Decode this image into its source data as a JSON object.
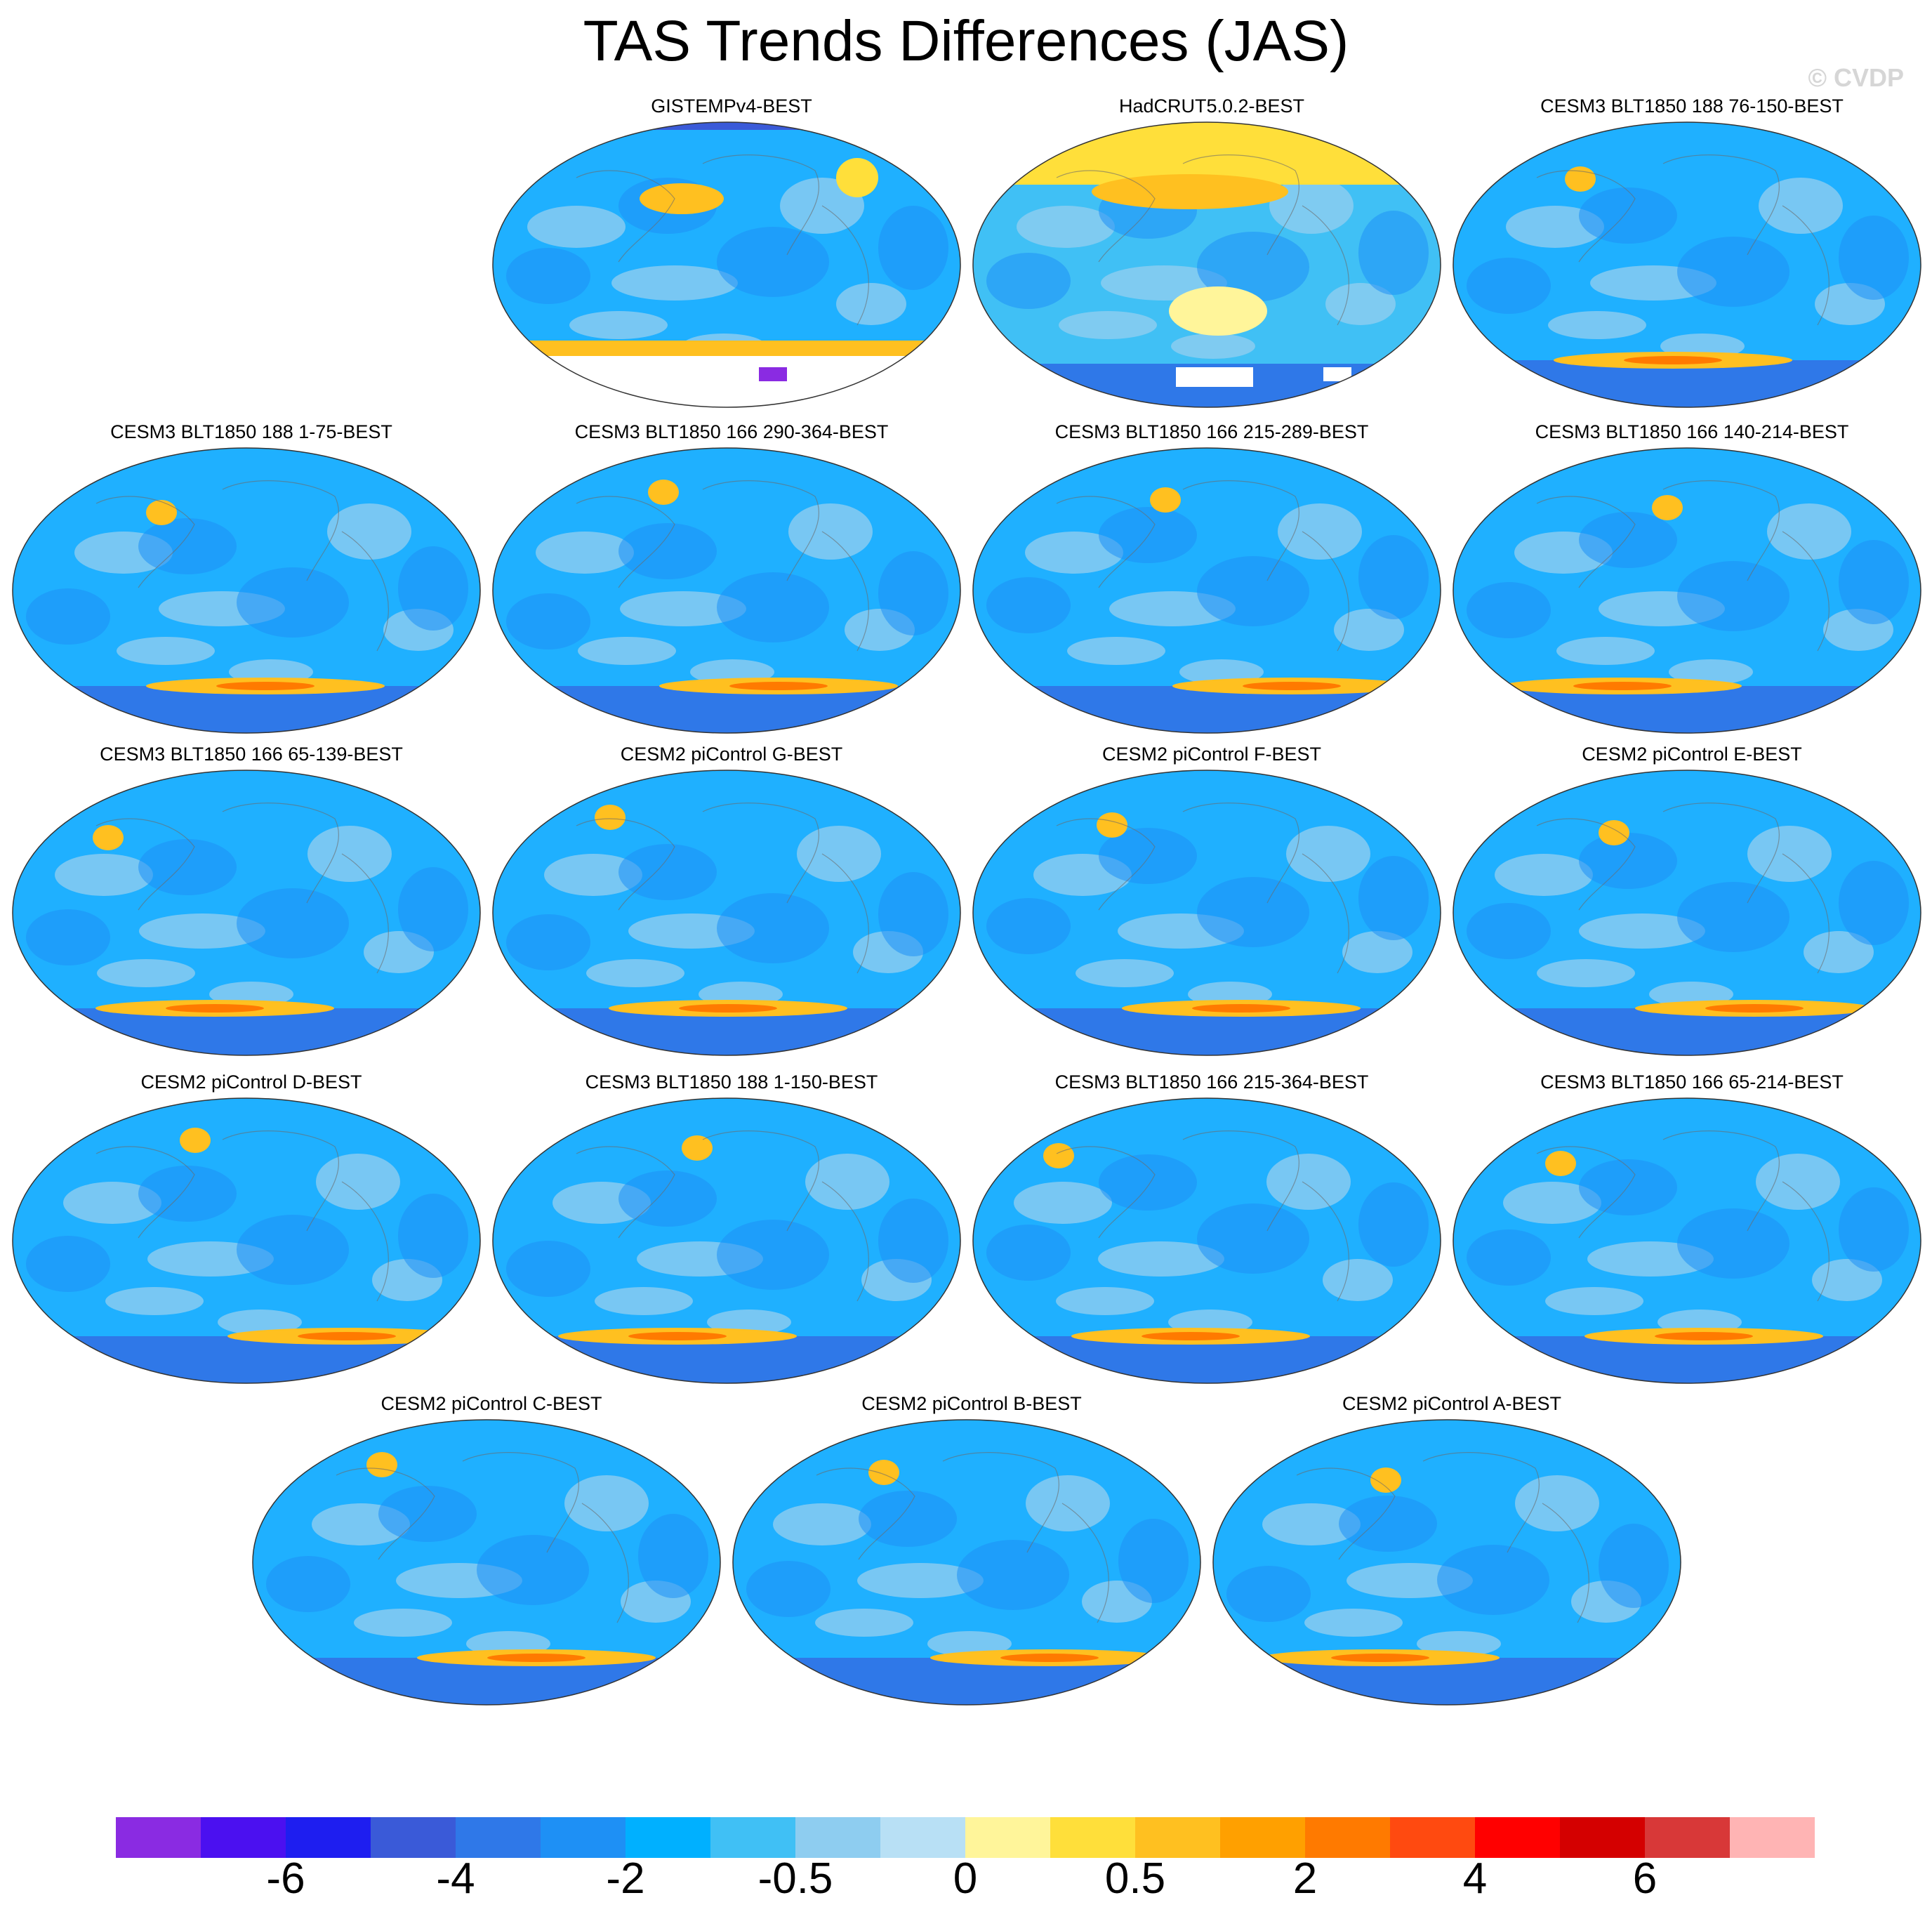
{
  "title": "TAS Trends Differences (JAS)",
  "watermark": "© CVDP",
  "panels": [
    {
      "label": "GISTEMPv4-BEST",
      "scheme": "gistemp"
    },
    {
      "label": "HadCRUT5.0.2-BEST",
      "scheme": "hadcrut"
    },
    {
      "label": "CESM3 BLT1850 188 76-150-BEST",
      "scheme": "model"
    },
    {
      "label": "CESM3 BLT1850 188 1-75-BEST",
      "scheme": "model"
    },
    {
      "label": "CESM3 BLT1850 166 290-364-BEST",
      "scheme": "model"
    },
    {
      "label": "CESM3 BLT1850 166 215-289-BEST",
      "scheme": "model"
    },
    {
      "label": "CESM3 BLT1850 166 140-214-BEST",
      "scheme": "model"
    },
    {
      "label": "CESM3 BLT1850 166 65-139-BEST",
      "scheme": "model"
    },
    {
      "label": "CESM2 piControl G-BEST",
      "scheme": "model"
    },
    {
      "label": "CESM2 piControl F-BEST",
      "scheme": "model"
    },
    {
      "label": "CESM2 piControl E-BEST",
      "scheme": "model"
    },
    {
      "label": "CESM2 piControl D-BEST",
      "scheme": "model"
    },
    {
      "label": "CESM3 BLT1850 188 1-150-BEST",
      "scheme": "model"
    },
    {
      "label": "CESM3 BLT1850 166 215-364-BEST",
      "scheme": "model"
    },
    {
      "label": "CESM3 BLT1850 166 65-214-BEST",
      "scheme": "model"
    },
    {
      "label": "CESM2 piControl C-BEST",
      "scheme": "model"
    },
    {
      "label": "CESM2 piControl B-BEST",
      "scheme": "model"
    },
    {
      "label": "CESM2 piControl A-BEST",
      "scheme": "model"
    }
  ],
  "colorbar": {
    "colors": [
      "#8a2be2",
      "#4b10f0",
      "#1e1ef0",
      "#3a5ad8",
      "#2f78e8",
      "#1e90f5",
      "#00b0ff",
      "#40c0f5",
      "#8ecdf0",
      "#b8e0f5",
      "#fff59a",
      "#ffdf3a",
      "#ffc020",
      "#ffa000",
      "#ff7a00",
      "#ff4a10",
      "#ff0000",
      "#d40000",
      "#d83838",
      "#ffb4b4"
    ],
    "tick_labels": [
      "-6",
      "-4",
      "-2",
      "-0.5",
      "0",
      "0.5",
      "2",
      "4",
      "6"
    ],
    "tick_boundaries": [
      2,
      4,
      6,
      8,
      10,
      12,
      14,
      16,
      18
    ]
  }
}
